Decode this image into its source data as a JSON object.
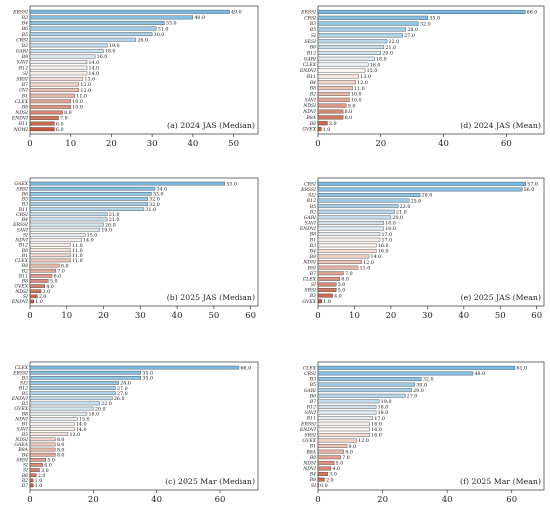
{
  "chart_data": [
    {
      "type": "bar",
      "orientation": "horizontal",
      "title": "(a) 2024 JAS (Median)",
      "categories": [
        "ERSSI",
        "B3",
        "B4",
        "B6",
        "B5",
        "CRSI",
        "B2",
        "GARI",
        "B8",
        "SAVI",
        "B12",
        "SI",
        "SRSI",
        "B7",
        "GVI",
        "B1",
        "CLEX",
        "B8",
        "NDSI",
        "ENDVI",
        "B11",
        "NDWI"
      ],
      "values": [
        49.0,
        40.0,
        33.0,
        31.0,
        30.0,
        26.0,
        19.0,
        18.0,
        16.0,
        14.0,
        14.0,
        14.0,
        13.0,
        12.0,
        12.0,
        11.0,
        10.0,
        10.0,
        8.0,
        7.0,
        6.0,
        6.0
      ],
      "xlim": [
        0,
        56
      ],
      "xticks": [
        0,
        10,
        20,
        30,
        40,
        50
      ]
    },
    {
      "type": "bar",
      "orientation": "horizontal",
      "title": "(d) 2024 JAS (Mean)",
      "categories": [
        "ERSSI",
        "CRSI",
        "B3",
        "B5",
        "SI",
        "SESI",
        "B6",
        "B12",
        "GARI",
        "CLEX",
        "ENDVI",
        "B11",
        "B4",
        "B8",
        "B2",
        "SAVI",
        "NDSI",
        "NDVI",
        "B8A",
        "B8",
        "GVEX"
      ],
      "values": [
        66.0,
        35.0,
        32.0,
        28.0,
        27.0,
        22.0,
        21.0,
        20.0,
        18.0,
        16.0,
        15.0,
        13.0,
        12.0,
        11.0,
        10.0,
        10.0,
        9.0,
        8.0,
        8.0,
        3.0,
        1.0
      ],
      "xlim": [
        0,
        72
      ],
      "xticks": [
        0,
        20,
        40,
        60
      ]
    },
    {
      "type": "bar",
      "orientation": "horizontal",
      "title": "(b) 2025 JAS (Median)",
      "categories": [
        "GAEX",
        "SRSI",
        "B6",
        "B5",
        "B3",
        "B11",
        "CRSI",
        "B4",
        "ERSSI",
        "SAVI",
        "SI",
        "NDVI",
        "B12",
        "B8",
        "B1",
        "CLEX",
        "B8",
        "B2",
        "B11",
        "B8",
        "GVEX",
        "NDSI",
        "SI",
        "ENDVI"
      ],
      "values": [
        53.0,
        34.0,
        33.0,
        32.0,
        32.0,
        31.0,
        21.0,
        21.0,
        20.0,
        19.0,
        15.0,
        14.0,
        11.0,
        11.0,
        11.0,
        11.0,
        8.0,
        7.0,
        6.0,
        5.0,
        4.0,
        3.0,
        2.0,
        1.0
      ],
      "xlim": [
        0,
        62
      ],
      "xticks": [
        0,
        10,
        20,
        30,
        40,
        50,
        60
      ]
    },
    {
      "type": "bar",
      "orientation": "horizontal",
      "title": "(e) 2025 JAS (Mean)",
      "categories": [
        "CRSI",
        "ERSSI",
        "SI2",
        "B12",
        "B5",
        "B2",
        "GARI",
        "SAVI",
        "ENDVI",
        "B8",
        "B1",
        "B3",
        "B4",
        "B8",
        "NDSI",
        "BSI",
        "B7",
        "CLEX",
        "SI",
        "SRSI",
        "B3",
        "GVEX"
      ],
      "values": [
        57.0,
        56.0,
        28.0,
        25.0,
        22.0,
        21.0,
        20.0,
        18.0,
        18.0,
        17.0,
        17.0,
        16.0,
        16.0,
        14.0,
        12.0,
        11.0,
        7.0,
        6.0,
        5.0,
        5.0,
        4.0,
        1.0
      ],
      "xlim": [
        0,
        62
      ],
      "xticks": [
        0,
        10,
        20,
        30,
        40,
        50,
        60
      ]
    },
    {
      "type": "bar",
      "orientation": "horizontal",
      "title": "(c) 2025 Mar (Median)",
      "categories": [
        "CLEX",
        "ERSSI",
        "B3",
        "SI2",
        "B12",
        "B5",
        "ENDVI",
        "B3",
        "GVEX",
        "B8",
        "NDVI",
        "B1",
        "SAVI",
        "B5",
        "NDSI",
        "GAEA",
        "B8A",
        "B4",
        "SRSI",
        "SI",
        "SI",
        "B6",
        "B2",
        "B7"
      ],
      "values": [
        66.0,
        35.0,
        35.0,
        28.0,
        27.0,
        27.0,
        26.0,
        22.0,
        20.0,
        18.0,
        15.0,
        14.0,
        14.0,
        12.0,
        8.0,
        8.0,
        8.0,
        8.0,
        5.0,
        4.0,
        3.0,
        2.0,
        1.0,
        1.0
      ],
      "xlim": [
        0,
        72
      ],
      "xticks": [
        0,
        20,
        40,
        60
      ]
    },
    {
      "type": "bar",
      "orientation": "horizontal",
      "title": "(f) 2025 Mar (Mean)",
      "categories": [
        "CLEX",
        "CRSI",
        "B3",
        "B5",
        "GARI",
        "B6",
        "B7",
        "B12",
        "SAVI",
        "B11",
        "ERSSI",
        "ENDVI",
        "SRSI",
        "GVEX",
        "B1",
        "B8A",
        "B8",
        "NDSI",
        "NDVI",
        "B4",
        "B8",
        "SI"
      ],
      "values": [
        61.0,
        48.0,
        32.0,
        30.0,
        29.0,
        27.0,
        19.0,
        18.0,
        18.0,
        17.0,
        16.0,
        16.0,
        16.0,
        12.0,
        9.0,
        8.0,
        7.0,
        5.0,
        4.0,
        3.0,
        2.0,
        0.0
      ],
      "xlim": [
        0,
        70
      ],
      "xticks": [
        0,
        20,
        40,
        60
      ]
    }
  ]
}
